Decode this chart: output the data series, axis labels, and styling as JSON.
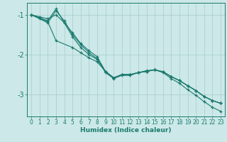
{
  "xlabel": "Humidex (Indice chaleur)",
  "bg_color": "#cce8e8",
  "line_color": "#1a7a6e",
  "grid_color": "#a8cccc",
  "xlim": [
    -0.5,
    23.5
  ],
  "ylim": [
    -3.55,
    -0.7
  ],
  "yticks": [
    -3,
    -2,
    -1
  ],
  "xticks": [
    0,
    1,
    2,
    3,
    4,
    5,
    6,
    7,
    8,
    9,
    10,
    11,
    12,
    13,
    14,
    15,
    16,
    17,
    18,
    19,
    20,
    21,
    22,
    23
  ],
  "series": [
    {
      "x": [
        0,
        1,
        2,
        3,
        4,
        5,
        6,
        7,
        8,
        9,
        10,
        11,
        12,
        13,
        14,
        15,
        16,
        17,
        18,
        19,
        20,
        21,
        22,
        23
      ],
      "y": [
        -1.0,
        -1.1,
        -1.2,
        -0.9,
        -1.15,
        -1.5,
        -1.75,
        -1.95,
        -2.1,
        -2.45,
        -2.6,
        -2.52,
        -2.52,
        -2.45,
        -2.4,
        -2.38,
        -2.45,
        -2.6,
        -2.72,
        -2.88,
        -3.02,
        -3.18,
        -3.32,
        -3.42
      ]
    },
    {
      "x": [
        0,
        1,
        2,
        3,
        4,
        5,
        6,
        7,
        8,
        9,
        10,
        11,
        12,
        13,
        14,
        15,
        16,
        17,
        18,
        19,
        20,
        21,
        22,
        23
      ],
      "y": [
        -1.0,
        -1.05,
        -1.1,
        -1.0,
        -1.2,
        -1.45,
        -1.72,
        -1.9,
        -2.05,
        -2.42,
        -2.58,
        -2.5,
        -2.5,
        -2.45,
        -2.42,
        -2.38,
        -2.43,
        -2.55,
        -2.65,
        -2.78,
        -2.9,
        -3.05,
        -3.15,
        -3.22
      ]
    },
    {
      "x": [
        0,
        2,
        3,
        4,
        5,
        6,
        7,
        8,
        9,
        10,
        11,
        12,
        13,
        14,
        15,
        16,
        17,
        18,
        19,
        20,
        21,
        22,
        23
      ],
      "y": [
        -1.0,
        -1.15,
        -0.85,
        -1.2,
        -1.55,
        -1.82,
        -2.0,
        -2.12,
        -2.42,
        -2.58,
        -2.5,
        -2.5,
        -2.45,
        -2.42,
        -2.38,
        -2.43,
        -2.55,
        -2.65,
        -2.78,
        -2.9,
        -3.05,
        -3.15,
        -3.22
      ]
    },
    {
      "x": [
        0,
        1,
        2,
        3,
        5,
        6,
        7,
        8,
        9,
        10,
        11,
        12,
        13,
        14,
        15,
        16,
        17,
        18,
        19,
        20,
        21,
        22,
        23
      ],
      "y": [
        -1.0,
        -1.08,
        -1.18,
        -1.65,
        -1.82,
        -1.95,
        -2.08,
        -2.18,
        -2.42,
        -2.58,
        -2.5,
        -2.5,
        -2.45,
        -2.42,
        -2.38,
        -2.43,
        -2.55,
        -2.65,
        -2.78,
        -2.9,
        -3.05,
        -3.15,
        -3.22
      ]
    }
  ]
}
